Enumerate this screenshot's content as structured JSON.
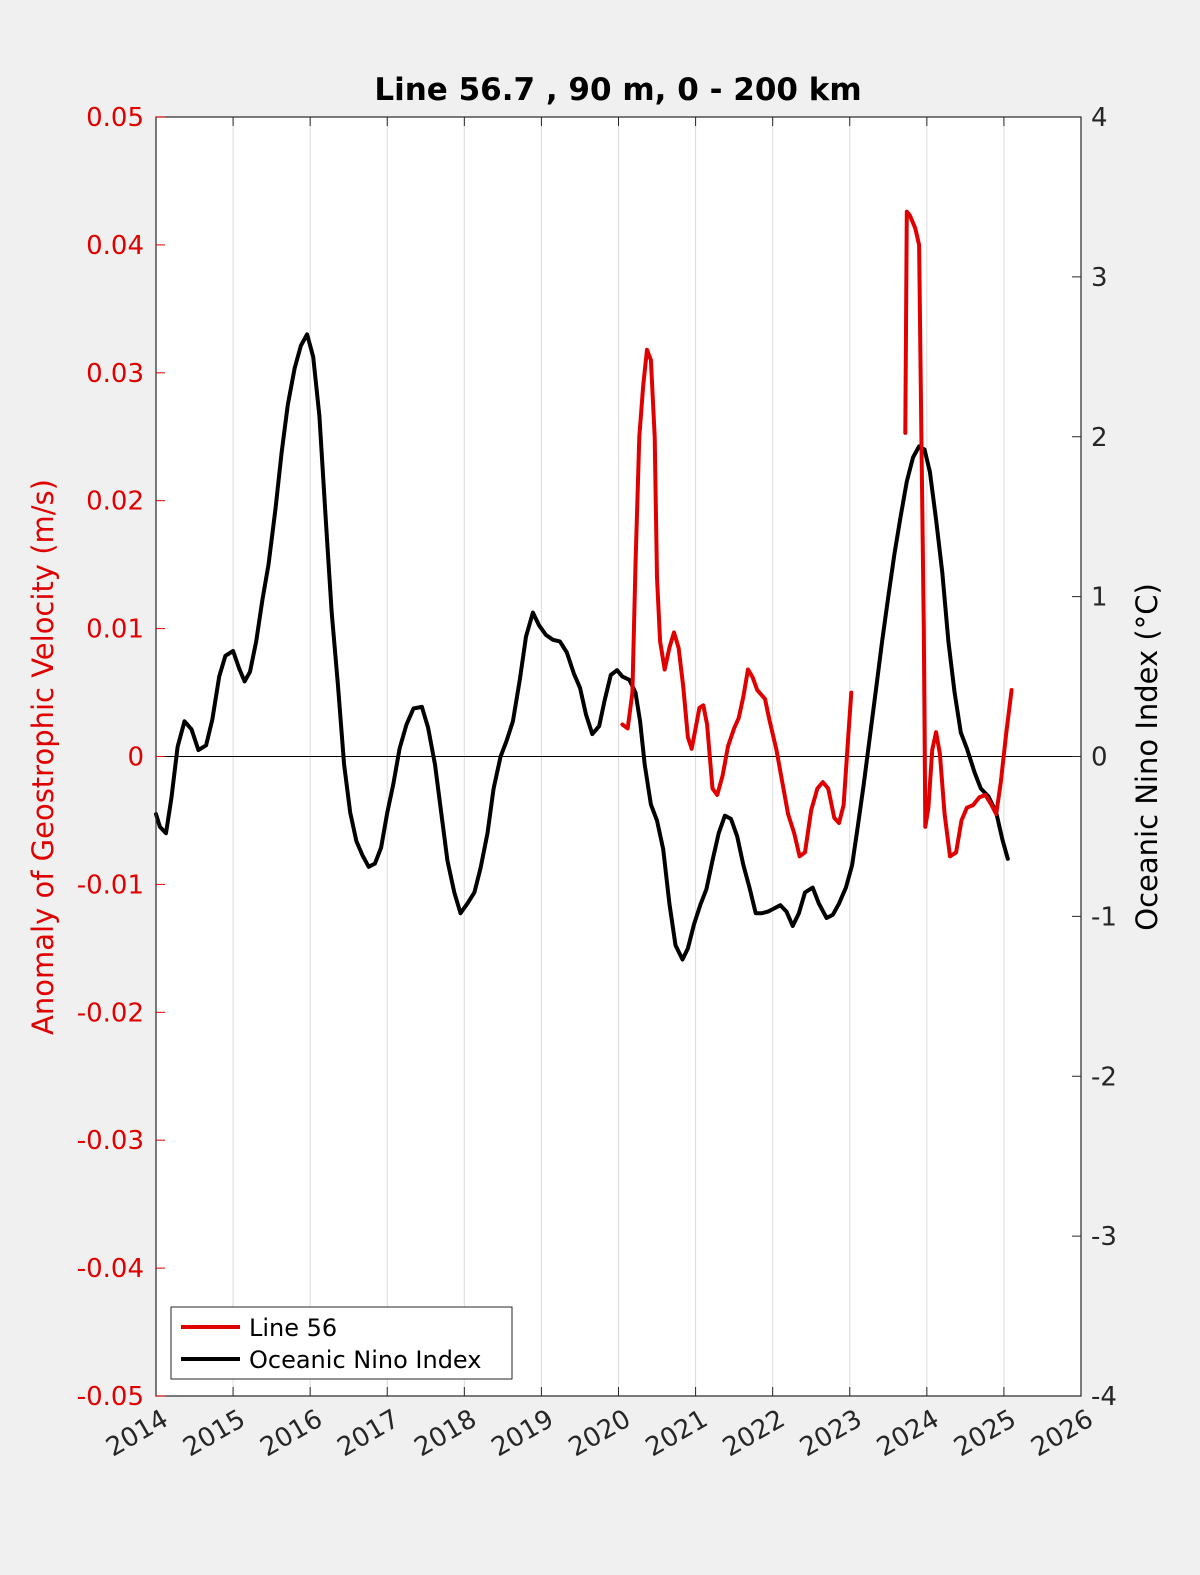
{
  "chart_data": {
    "type": "line",
    "title": "Line 56.7 , 90 m, 0 - 200 km",
    "ylabel_left": "Anomaly of Geostrophic Velocity (m/s)",
    "ylabel_right": "Oceanic Nino Index (°C)",
    "xlim": [
      2014,
      2026
    ],
    "ylim_left": [
      -0.05,
      0.05
    ],
    "ylim_right": [
      -4,
      4
    ],
    "x_ticks": [
      "2014",
      "2015",
      "2016",
      "2017",
      "2018",
      "2019",
      "2020",
      "2021",
      "2022",
      "2023",
      "2024",
      "2025",
      "2026"
    ],
    "y_left_ticks": [
      "0.05",
      "0.04",
      "0.03",
      "0.02",
      "0.01",
      "0",
      "-0.01",
      "-0.02",
      "-0.03",
      "-0.04",
      "-0.05"
    ],
    "y_right_ticks": [
      "4",
      "3",
      "2",
      "1",
      "0",
      "-1",
      "-2",
      "-3",
      "-4"
    ],
    "grid": "vertical",
    "legend_position": "bottom-left",
    "colors": {
      "left_axis": "#e00000",
      "line56": "#e00000",
      "oni": "#000000"
    },
    "series": [
      {
        "name": "Line 56",
        "axis": "left",
        "color": "#e00000",
        "segments": [
          [
            [
              2020.05,
              0.0025
            ],
            [
              2020.12,
              0.0022
            ],
            [
              2020.18,
              0.005
            ],
            [
              2020.22,
              0.015
            ],
            [
              2020.27,
              0.025
            ],
            [
              2020.32,
              0.029
            ],
            [
              2020.37,
              0.0318
            ],
            [
              2020.42,
              0.031
            ],
            [
              2020.47,
              0.025
            ],
            [
              2020.5,
              0.014
            ],
            [
              2020.54,
              0.009
            ],
            [
              2020.6,
              0.0068
            ],
            [
              2020.66,
              0.0085
            ],
            [
              2020.72,
              0.0097
            ],
            [
              2020.78,
              0.0085
            ],
            [
              2020.84,
              0.0055
            ],
            [
              2020.9,
              0.0015
            ],
            [
              2020.95,
              0.0006
            ],
            [
              2021.0,
              0.0022
            ],
            [
              2021.05,
              0.0038
            ],
            [
              2021.1,
              0.004
            ],
            [
              2021.15,
              0.0025
            ],
            [
              2021.22,
              -0.0025
            ],
            [
              2021.28,
              -0.003
            ],
            [
              2021.35,
              -0.0015
            ],
            [
              2021.42,
              0.0008
            ],
            [
              2021.5,
              0.0022
            ],
            [
              2021.56,
              0.003
            ],
            [
              2021.62,
              0.0047
            ],
            [
              2021.68,
              0.0068
            ],
            [
              2021.74,
              0.0062
            ],
            [
              2021.8,
              0.0052
            ],
            [
              2021.9,
              0.0045
            ],
            [
              2021.96,
              0.0028
            ],
            [
              2022.05,
              0.0005
            ],
            [
              2022.1,
              -0.0012
            ],
            [
              2022.2,
              -0.0045
            ],
            [
              2022.28,
              -0.006
            ],
            [
              2022.35,
              -0.0078
            ],
            [
              2022.42,
              -0.0075
            ],
            [
              2022.5,
              -0.0042
            ],
            [
              2022.58,
              -0.0025
            ],
            [
              2022.65,
              -0.002
            ],
            [
              2022.72,
              -0.0025
            ],
            [
              2022.8,
              -0.0048
            ],
            [
              2022.86,
              -0.0052
            ],
            [
              2022.92,
              -0.0038
            ],
            [
              2022.98,
              0.0015
            ],
            [
              2023.02,
              0.005
            ]
          ],
          [
            [
              2023.72,
              0.0253
            ],
            [
              2023.74,
              0.0426
            ],
            [
              2023.78,
              0.0423
            ],
            [
              2023.85,
              0.0413
            ],
            [
              2023.9,
              0.04
            ],
            [
              2023.93,
              0.025
            ],
            [
              2023.96,
              0.01
            ],
            [
              2023.98,
              -0.0055
            ],
            [
              2024.02,
              -0.004
            ],
            [
              2024.07,
              0.0005
            ],
            [
              2024.12,
              0.0019
            ],
            [
              2024.17,
              0.0002
            ],
            [
              2024.23,
              -0.0045
            ],
            [
              2024.3,
              -0.0078
            ],
            [
              2024.38,
              -0.0075
            ],
            [
              2024.45,
              -0.005
            ],
            [
              2024.52,
              -0.004
            ],
            [
              2024.6,
              -0.0038
            ],
            [
              2024.68,
              -0.0032
            ],
            [
              2024.76,
              -0.003
            ],
            [
              2024.84,
              -0.0038
            ],
            [
              2024.9,
              -0.0045
            ],
            [
              2024.96,
              -0.002
            ],
            [
              2025.03,
              0.0018
            ],
            [
              2025.1,
              0.0052
            ]
          ]
        ]
      },
      {
        "name": "Oceanic Nino Index",
        "axis": "right",
        "color": "#000000",
        "segments": [
          [
            [
              2014.0,
              -0.36
            ],
            [
              2014.05,
              -0.44
            ],
            [
              2014.13,
              -0.48
            ],
            [
              2014.2,
              -0.26
            ],
            [
              2014.28,
              0.06
            ],
            [
              2014.37,
              0.22
            ],
            [
              2014.46,
              0.17
            ],
            [
              2014.55,
              0.04
            ],
            [
              2014.65,
              0.07
            ],
            [
              2014.73,
              0.23
            ],
            [
              2014.82,
              0.5
            ],
            [
              2014.9,
              0.63
            ],
            [
              2015.0,
              0.66
            ],
            [
              2015.08,
              0.55
            ],
            [
              2015.15,
              0.47
            ],
            [
              2015.22,
              0.53
            ],
            [
              2015.3,
              0.72
            ],
            [
              2015.38,
              0.98
            ],
            [
              2015.46,
              1.2
            ],
            [
              2015.55,
              1.55
            ],
            [
              2015.63,
              1.9
            ],
            [
              2015.71,
              2.2
            ],
            [
              2015.8,
              2.43
            ],
            [
              2015.88,
              2.57
            ],
            [
              2015.96,
              2.64
            ],
            [
              2016.04,
              2.5
            ],
            [
              2016.12,
              2.13
            ],
            [
              2016.2,
              1.5
            ],
            [
              2016.28,
              0.9
            ],
            [
              2016.36,
              0.45
            ],
            [
              2016.44,
              -0.05
            ],
            [
              2016.52,
              -0.35
            ],
            [
              2016.6,
              -0.53
            ],
            [
              2016.68,
              -0.62
            ],
            [
              2016.76,
              -0.69
            ],
            [
              2016.84,
              -0.67
            ],
            [
              2016.92,
              -0.57
            ],
            [
              2017.0,
              -0.35
            ],
            [
              2017.08,
              -0.17
            ],
            [
              2017.16,
              0.05
            ],
            [
              2017.25,
              0.2
            ],
            [
              2017.34,
              0.3
            ],
            [
              2017.45,
              0.31
            ],
            [
              2017.53,
              0.18
            ],
            [
              2017.62,
              -0.05
            ],
            [
              2017.7,
              -0.35
            ],
            [
              2017.78,
              -0.65
            ],
            [
              2017.87,
              -0.85
            ],
            [
              2017.95,
              -0.98
            ],
            [
              2018.04,
              -0.92
            ],
            [
              2018.13,
              -0.85
            ],
            [
              2018.21,
              -0.7
            ],
            [
              2018.3,
              -0.48
            ],
            [
              2018.38,
              -0.2
            ],
            [
              2018.47,
              0.0
            ],
            [
              2018.55,
              0.1
            ],
            [
              2018.63,
              0.22
            ],
            [
              2018.72,
              0.48
            ],
            [
              2018.8,
              0.75
            ],
            [
              2018.89,
              0.9
            ],
            [
              2018.97,
              0.82
            ],
            [
              2019.06,
              0.76
            ],
            [
              2019.15,
              0.73
            ],
            [
              2019.24,
              0.72
            ],
            [
              2019.33,
              0.65
            ],
            [
              2019.42,
              0.52
            ],
            [
              2019.5,
              0.43
            ],
            [
              2019.58,
              0.26
            ],
            [
              2019.66,
              0.14
            ],
            [
              2019.75,
              0.19
            ],
            [
              2019.82,
              0.35
            ],
            [
              2019.9,
              0.51
            ],
            [
              2019.98,
              0.54
            ],
            [
              2020.05,
              0.5
            ],
            [
              2020.14,
              0.48
            ],
            [
              2020.22,
              0.4
            ],
            [
              2020.28,
              0.22
            ],
            [
              2020.34,
              -0.05
            ],
            [
              2020.42,
              -0.3
            ],
            [
              2020.5,
              -0.4
            ],
            [
              2020.58,
              -0.58
            ],
            [
              2020.66,
              -0.92
            ],
            [
              2020.74,
              -1.18
            ],
            [
              2020.83,
              -1.27
            ],
            [
              2020.9,
              -1.2
            ],
            [
              2020.98,
              -1.05
            ],
            [
              2021.06,
              -0.93
            ],
            [
              2021.14,
              -0.83
            ],
            [
              2021.22,
              -0.65
            ],
            [
              2021.3,
              -0.48
            ],
            [
              2021.38,
              -0.37
            ],
            [
              2021.46,
              -0.39
            ],
            [
              2021.54,
              -0.5
            ],
            [
              2021.62,
              -0.68
            ],
            [
              2021.7,
              -0.82
            ],
            [
              2021.78,
              -0.98
            ],
            [
              2021.86,
              -0.98
            ],
            [
              2021.94,
              -0.97
            ],
            [
              2022.02,
              -0.95
            ],
            [
              2022.1,
              -0.93
            ],
            [
              2022.18,
              -0.97
            ],
            [
              2022.26,
              -1.06
            ],
            [
              2022.34,
              -0.98
            ],
            [
              2022.42,
              -0.85
            ],
            [
              2022.52,
              -0.82
            ],
            [
              2022.6,
              -0.92
            ],
            [
              2022.7,
              -1.01
            ],
            [
              2022.78,
              -0.99
            ],
            [
              2022.86,
              -0.92
            ],
            [
              2022.95,
              -0.82
            ],
            [
              2023.03,
              -0.68
            ],
            [
              2023.1,
              -0.45
            ],
            [
              2023.18,
              -0.18
            ],
            [
              2023.26,
              0.12
            ],
            [
              2023.34,
              0.42
            ],
            [
              2023.42,
              0.72
            ],
            [
              2023.5,
              1.0
            ],
            [
              2023.58,
              1.27
            ],
            [
              2023.66,
              1.5
            ],
            [
              2023.74,
              1.72
            ],
            [
              2023.82,
              1.87
            ],
            [
              2023.9,
              1.94
            ],
            [
              2023.97,
              1.92
            ],
            [
              2024.04,
              1.78
            ],
            [
              2024.12,
              1.48
            ],
            [
              2024.2,
              1.15
            ],
            [
              2024.28,
              0.72
            ],
            [
              2024.36,
              0.4
            ],
            [
              2024.44,
              0.15
            ],
            [
              2024.52,
              0.05
            ],
            [
              2024.62,
              -0.1
            ],
            [
              2024.7,
              -0.2
            ],
            [
              2024.8,
              -0.25
            ],
            [
              2024.9,
              -0.35
            ],
            [
              2024.98,
              -0.52
            ],
            [
              2025.05,
              -0.64
            ]
          ]
        ]
      }
    ]
  }
}
